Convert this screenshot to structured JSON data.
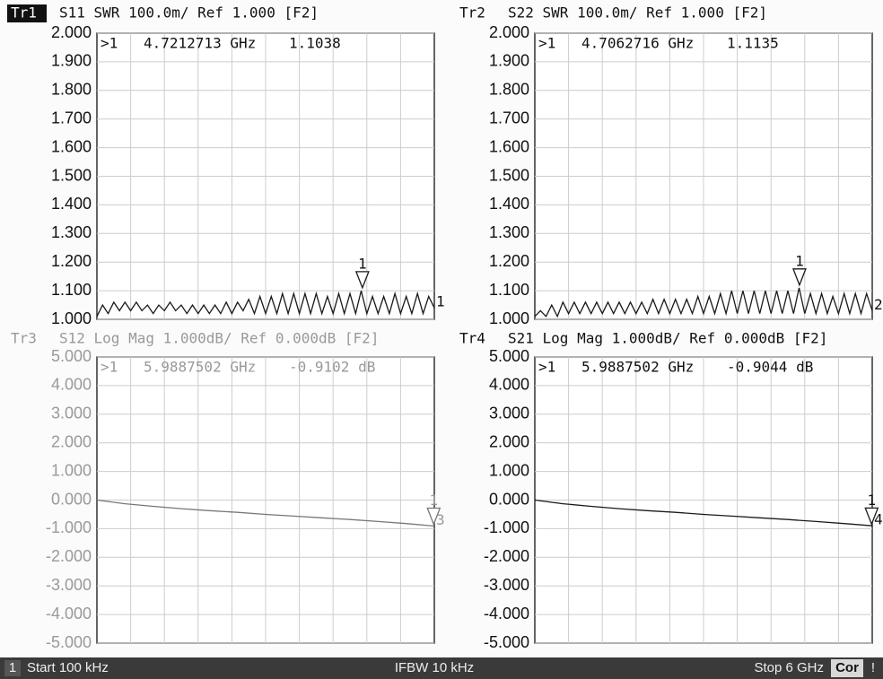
{
  "chart_data": [
    {
      "type": "line",
      "trace": "Tr1",
      "title": "S11 SWR 100.0m/ Ref 1.000 [F2]",
      "active": true,
      "color": "#1a1a1a",
      "ylim": [
        1,
        2
      ],
      "yticks": [
        {
          "value": 1,
          "label": "1.000"
        },
        {
          "value": 1.1,
          "label": "1.100"
        },
        {
          "value": 1.2,
          "label": "1.200"
        },
        {
          "value": 1.3,
          "label": "1.300"
        },
        {
          "value": 1.4,
          "label": "1.400"
        },
        {
          "value": 1.5,
          "label": "1.500"
        },
        {
          "value": 1.6,
          "label": "1.600"
        },
        {
          "value": 1.7,
          "label": "1.700"
        },
        {
          "value": 1.8,
          "label": "1.800"
        },
        {
          "value": 1.9,
          "label": "1.900"
        },
        {
          "value": 2,
          "label": "2.000"
        }
      ],
      "xlim": [
        0.0001,
        6
      ],
      "x": [
        0.0001,
        0.1,
        0.2,
        0.3,
        0.4,
        0.5,
        0.6,
        0.7,
        0.8,
        0.9,
        1.0,
        1.1,
        1.2,
        1.3,
        1.4,
        1.5,
        1.6,
        1.7,
        1.8,
        1.9,
        2.0,
        2.1,
        2.2,
        2.3,
        2.4,
        2.5,
        2.6,
        2.7,
        2.8,
        2.9,
        3.0,
        3.1,
        3.2,
        3.3,
        3.4,
        3.5,
        3.6,
        3.7,
        3.8,
        3.9,
        4.0,
        4.1,
        4.2,
        4.3,
        4.4,
        4.5,
        4.6,
        4.7,
        4.8,
        4.9,
        5.0,
        5.1,
        5.2,
        5.3,
        5.4,
        5.5,
        5.6,
        5.7,
        5.8,
        5.9,
        6.0
      ],
      "values": [
        1.01,
        1.05,
        1.02,
        1.06,
        1.03,
        1.06,
        1.03,
        1.06,
        1.03,
        1.05,
        1.02,
        1.05,
        1.03,
        1.06,
        1.03,
        1.05,
        1.02,
        1.05,
        1.02,
        1.05,
        1.02,
        1.05,
        1.02,
        1.06,
        1.02,
        1.06,
        1.03,
        1.07,
        1.02,
        1.08,
        1.02,
        1.08,
        1.02,
        1.09,
        1.02,
        1.09,
        1.02,
        1.09,
        1.02,
        1.09,
        1.02,
        1.08,
        1.02,
        1.09,
        1.02,
        1.09,
        1.02,
        1.1,
        1.02,
        1.08,
        1.02,
        1.08,
        1.02,
        1.09,
        1.02,
        1.08,
        1.02,
        1.09,
        1.02,
        1.08,
        1.04
      ],
      "marker": {
        "readout": ">1",
        "number": "1",
        "x": 4.7212713,
        "x_label": "4.7212713 GHz",
        "y": 1.1038,
        "y_label": "1.1038"
      },
      "trace_tag": "1"
    },
    {
      "type": "line",
      "trace": "Tr2",
      "title": "S22 SWR 100.0m/ Ref 1.000 [F2]",
      "active": true,
      "color": "#1a1a1a",
      "ylim": [
        1,
        2
      ],
      "yticks": [
        {
          "value": 1,
          "label": "1.000"
        },
        {
          "value": 1.1,
          "label": "1.100"
        },
        {
          "value": 1.2,
          "label": "1.200"
        },
        {
          "value": 1.3,
          "label": "1.300"
        },
        {
          "value": 1.4,
          "label": "1.400"
        },
        {
          "value": 1.5,
          "label": "1.500"
        },
        {
          "value": 1.6,
          "label": "1.600"
        },
        {
          "value": 1.7,
          "label": "1.700"
        },
        {
          "value": 1.8,
          "label": "1.800"
        },
        {
          "value": 1.9,
          "label": "1.900"
        },
        {
          "value": 2,
          "label": "2.000"
        }
      ],
      "xlim": [
        0.0001,
        6
      ],
      "x": [
        0.0001,
        0.1,
        0.2,
        0.3,
        0.4,
        0.5,
        0.6,
        0.7,
        0.8,
        0.9,
        1.0,
        1.1,
        1.2,
        1.3,
        1.4,
        1.5,
        1.6,
        1.7,
        1.8,
        1.9,
        2.0,
        2.1,
        2.2,
        2.3,
        2.4,
        2.5,
        2.6,
        2.7,
        2.8,
        2.9,
        3.0,
        3.1,
        3.2,
        3.3,
        3.4,
        3.5,
        3.6,
        3.7,
        3.8,
        3.9,
        4.0,
        4.1,
        4.2,
        4.3,
        4.4,
        4.5,
        4.6,
        4.7,
        4.8,
        4.9,
        5.0,
        5.1,
        5.2,
        5.3,
        5.4,
        5.5,
        5.6,
        5.7,
        5.8,
        5.9,
        6.0
      ],
      "values": [
        1.01,
        1.03,
        1.01,
        1.05,
        1.01,
        1.06,
        1.02,
        1.06,
        1.02,
        1.06,
        1.02,
        1.06,
        1.02,
        1.06,
        1.02,
        1.06,
        1.02,
        1.06,
        1.02,
        1.06,
        1.02,
        1.07,
        1.02,
        1.07,
        1.02,
        1.07,
        1.02,
        1.07,
        1.02,
        1.08,
        1.02,
        1.08,
        1.02,
        1.09,
        1.02,
        1.1,
        1.02,
        1.1,
        1.02,
        1.1,
        1.02,
        1.1,
        1.02,
        1.1,
        1.02,
        1.1,
        1.02,
        1.11,
        1.02,
        1.09,
        1.02,
        1.09,
        1.02,
        1.08,
        1.02,
        1.09,
        1.02,
        1.09,
        1.02,
        1.09,
        1.03
      ],
      "marker": {
        "readout": ">1",
        "number": "1",
        "x": 4.7062716,
        "x_label": "4.7062716 GHz",
        "y": 1.1135,
        "y_label": "1.1135"
      },
      "trace_tag": "2"
    },
    {
      "type": "line",
      "trace": "Tr3",
      "title": "S12 Log Mag 1.000dB/ Ref 0.000dB [F2]",
      "active": false,
      "color": "#777777",
      "ylim": [
        -5,
        5
      ],
      "yticks": [
        {
          "value": -5,
          "label": "-5.000"
        },
        {
          "value": -4,
          "label": "-4.000"
        },
        {
          "value": -3,
          "label": "-3.000"
        },
        {
          "value": -2,
          "label": "-2.000"
        },
        {
          "value": -1,
          "label": "-1.000"
        },
        {
          "value": 0,
          "label": "0.000"
        },
        {
          "value": 1,
          "label": "1.000"
        },
        {
          "value": 2,
          "label": "2.000"
        },
        {
          "value": 3,
          "label": "3.000"
        },
        {
          "value": 4,
          "label": "4.000"
        },
        {
          "value": 5,
          "label": "5.000"
        }
      ],
      "xlim": [
        0.0001,
        6
      ],
      "x": [
        0.0001,
        0.5,
        1.0,
        1.5,
        2.0,
        2.5,
        3.0,
        3.5,
        4.0,
        4.5,
        5.0,
        5.5,
        6.0
      ],
      "values": [
        0,
        -0.13,
        -0.22,
        -0.3,
        -0.37,
        -0.43,
        -0.5,
        -0.56,
        -0.62,
        -0.68,
        -0.75,
        -0.82,
        -0.91
      ],
      "marker": {
        "readout": ">1",
        "number": "1",
        "x": 5.9887502,
        "x_label": "5.9887502 GHz",
        "y": -0.9102,
        "y_label": "-0.9102 dB"
      },
      "trace_tag": "3"
    },
    {
      "type": "line",
      "trace": "Tr4",
      "title": "S21 Log Mag 1.000dB/ Ref 0.000dB [F2]",
      "active": true,
      "color": "#1a1a1a",
      "ylim": [
        -5,
        5
      ],
      "yticks": [
        {
          "value": -5,
          "label": "-5.000"
        },
        {
          "value": -4,
          "label": "-4.000"
        },
        {
          "value": -3,
          "label": "-3.000"
        },
        {
          "value": -2,
          "label": "-2.000"
        },
        {
          "value": -1,
          "label": "-1.000"
        },
        {
          "value": 0,
          "label": "0.000"
        },
        {
          "value": 1,
          "label": "1.000"
        },
        {
          "value": 2,
          "label": "2.000"
        },
        {
          "value": 3,
          "label": "3.000"
        },
        {
          "value": 4,
          "label": "4.000"
        },
        {
          "value": 5,
          "label": "5.000"
        }
      ],
      "xlim": [
        0.0001,
        6
      ],
      "x": [
        0.0001,
        0.5,
        1.0,
        1.5,
        2.0,
        2.5,
        3.0,
        3.5,
        4.0,
        4.5,
        5.0,
        5.5,
        6.0
      ],
      "values": [
        0,
        -0.13,
        -0.22,
        -0.3,
        -0.37,
        -0.43,
        -0.5,
        -0.56,
        -0.62,
        -0.68,
        -0.75,
        -0.82,
        -0.9
      ],
      "marker": {
        "readout": ">1",
        "number": "1",
        "x": 5.9887502,
        "x_label": "5.9887502 GHz",
        "y": -0.9044,
        "y_label": "-0.9044 dB"
      },
      "trace_tag": "4"
    }
  ],
  "status_bar": {
    "channel": "1",
    "start": "Start 100 kHz",
    "ifbw": "IFBW 10 kHz",
    "stop": "Stop 6 GHz",
    "correction": "Cor",
    "alert": "!"
  }
}
